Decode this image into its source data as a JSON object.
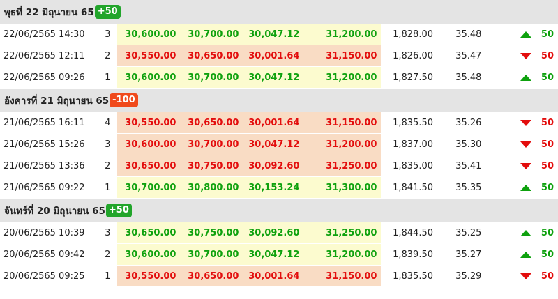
{
  "colors": {
    "up": "#0ea10e",
    "down": "#e30d0d",
    "up_bg": "#fcfbcf",
    "down_bg": "#f9dcc4",
    "badge_up": "#22a52b",
    "badge_down": "#f04a1c"
  },
  "groups": [
    {
      "title": "พุธที่ 22 มิถุนายน 65",
      "badge": "+50",
      "direction": "up",
      "rows": [
        {
          "datetime": "22/06/2565 14:30",
          "round": "3",
          "p1": "30,600.00",
          "p2": "30,700.00",
          "p3": "30,047.12",
          "p4": "31,200.00",
          "gold": "1,828.00",
          "thb": "35.48",
          "direction": "up",
          "change": "50",
          "arrow_icon": "triangle-up-icon"
        },
        {
          "datetime": "22/06/2565 12:11",
          "round": "2",
          "p1": "30,550.00",
          "p2": "30,650.00",
          "p3": "30,001.64",
          "p4": "31,150.00",
          "gold": "1,826.00",
          "thb": "35.47",
          "direction": "down",
          "change": "50",
          "arrow_icon": "triangle-down-icon"
        },
        {
          "datetime": "22/06/2565 09:26",
          "round": "1",
          "p1": "30,600.00",
          "p2": "30,700.00",
          "p3": "30,047.12",
          "p4": "31,200.00",
          "gold": "1,827.50",
          "thb": "35.48",
          "direction": "up",
          "change": "50",
          "arrow_icon": "triangle-up-icon"
        }
      ]
    },
    {
      "title": "อังคารที่ 21 มิถุนายน 65",
      "badge": "-100",
      "direction": "down",
      "rows": [
        {
          "datetime": "21/06/2565 16:11",
          "round": "4",
          "p1": "30,550.00",
          "p2": "30,650.00",
          "p3": "30,001.64",
          "p4": "31,150.00",
          "gold": "1,835.50",
          "thb": "35.26",
          "direction": "down",
          "change": "50",
          "arrow_icon": "triangle-down-icon"
        },
        {
          "datetime": "21/06/2565 15:26",
          "round": "3",
          "p1": "30,600.00",
          "p2": "30,700.00",
          "p3": "30,047.12",
          "p4": "31,200.00",
          "gold": "1,837.00",
          "thb": "35.30",
          "direction": "down",
          "change": "50",
          "arrow_icon": "triangle-down-icon"
        },
        {
          "datetime": "21/06/2565 13:36",
          "round": "2",
          "p1": "30,650.00",
          "p2": "30,750.00",
          "p3": "30,092.60",
          "p4": "31,250.00",
          "gold": "1,835.00",
          "thb": "35.41",
          "direction": "down",
          "change": "50",
          "arrow_icon": "triangle-down-icon"
        },
        {
          "datetime": "21/06/2565 09:22",
          "round": "1",
          "p1": "30,700.00",
          "p2": "30,800.00",
          "p3": "30,153.24",
          "p4": "31,300.00",
          "gold": "1,841.50",
          "thb": "35.35",
          "direction": "up",
          "change": "50",
          "arrow_icon": "triangle-up-icon"
        }
      ]
    },
    {
      "title": "จันทร์ที่ 20 มิถุนายน 65",
      "badge": "+50",
      "direction": "up",
      "rows": [
        {
          "datetime": "20/06/2565 10:39",
          "round": "3",
          "p1": "30,650.00",
          "p2": "30,750.00",
          "p3": "30,092.60",
          "p4": "31,250.00",
          "gold": "1,844.50",
          "thb": "35.25",
          "direction": "up",
          "change": "50",
          "arrow_icon": "triangle-up-icon"
        },
        {
          "datetime": "20/06/2565 09:42",
          "round": "2",
          "p1": "30,600.00",
          "p2": "30,700.00",
          "p3": "30,047.12",
          "p4": "31,200.00",
          "gold": "1,839.50",
          "thb": "35.27",
          "direction": "up",
          "change": "50",
          "arrow_icon": "triangle-up-icon"
        },
        {
          "datetime": "20/06/2565 09:25",
          "round": "1",
          "p1": "30,550.00",
          "p2": "30,650.00",
          "p3": "30,001.64",
          "p4": "31,150.00",
          "gold": "1,835.50",
          "thb": "35.29",
          "direction": "down",
          "change": "50",
          "arrow_icon": "triangle-down-icon"
        }
      ]
    }
  ]
}
